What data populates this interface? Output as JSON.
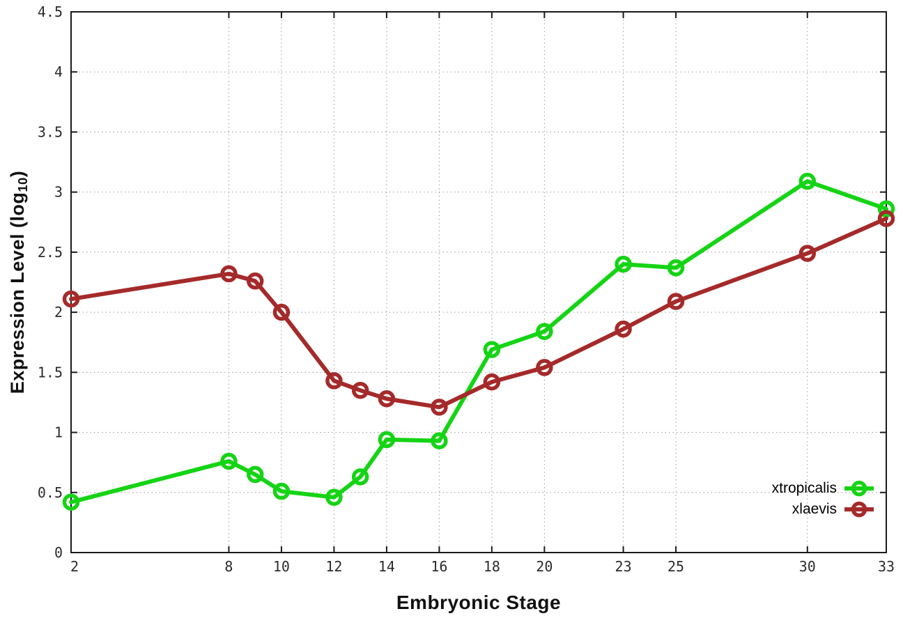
{
  "figure": {
    "xlabel": "Embryonic Stage",
    "ylabel_prefix": "Expression Level (log",
    "ylabel_sub": "10",
    "ylabel_suffix": ")"
  },
  "chart_data": {
    "type": "line",
    "title": "",
    "xlabel": "Embryonic Stage",
    "ylabel": "Expression Level (log10)",
    "x": [
      2,
      8,
      9,
      10,
      12,
      13,
      14,
      16,
      18,
      20,
      23,
      25,
      30,
      33
    ],
    "series": [
      {
        "name": "xtropicalis",
        "color": "#15d415",
        "values": [
          0.42,
          0.76,
          0.65,
          0.51,
          0.46,
          0.63,
          0.94,
          0.93,
          1.69,
          1.84,
          2.4,
          2.37,
          3.09,
          2.86
        ]
      },
      {
        "name": "xlaevis",
        "color": "#a52a2a",
        "values": [
          2.11,
          2.32,
          2.26,
          2.0,
          1.43,
          1.35,
          1.28,
          1.21,
          1.42,
          1.54,
          1.86,
          2.09,
          2.49,
          2.78
        ]
      }
    ],
    "xlim": [
      2,
      33
    ],
    "ylim": [
      0,
      4.5
    ],
    "xticks": [
      2,
      8,
      10,
      12,
      14,
      16,
      18,
      20,
      23,
      25,
      30,
      33
    ],
    "xtick_labels": [
      "2",
      "8",
      "10",
      "12",
      "14",
      "16",
      "18",
      "20",
      "23",
      "25",
      "30",
      "33"
    ],
    "yticks": [
      0,
      0.5,
      1,
      1.5,
      2,
      2.5,
      3,
      3.5,
      4,
      4.5
    ],
    "ytick_labels": [
      "0",
      "0.5",
      "1",
      "1.5",
      "2",
      "2.5",
      "3",
      "3.5",
      "4",
      "4.5"
    ],
    "grid": true,
    "marker": "open-circle",
    "legend_position": "bottom-right"
  },
  "style": {
    "background": "#ffffff",
    "axis_color": "#1a1a1a",
    "grid_color": "#999999",
    "tick_label_color": "#2b2b2b",
    "line_width": 6,
    "marker_radius": 9.5
  }
}
